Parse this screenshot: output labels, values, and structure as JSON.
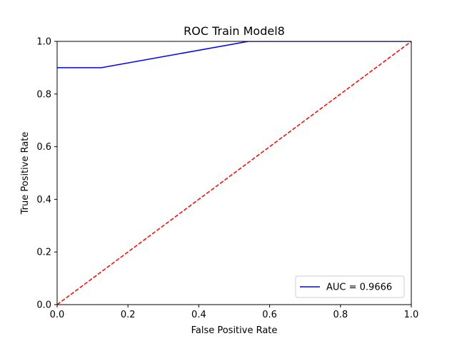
{
  "chart_data": {
    "type": "line",
    "title": "ROC Train Model8",
    "xlabel": "False Positive Rate",
    "ylabel": "True Positive Rate",
    "xlim": [
      0,
      1
    ],
    "ylim": [
      0,
      1
    ],
    "xticks": [
      "0.0",
      "0.2",
      "0.4",
      "0.6",
      "0.8",
      "1.0"
    ],
    "yticks": [
      "0.0",
      "0.2",
      "0.4",
      "0.6",
      "0.8",
      "1.0"
    ],
    "grid": false,
    "legend_position": "lower-right",
    "series": [
      {
        "name": "AUC = 0.9666",
        "color": "#0000ff",
        "style": "solid",
        "x": [
          0.0,
          0.125,
          0.54,
          1.0
        ],
        "y": [
          0.9,
          0.9,
          1.0,
          1.0
        ]
      },
      {
        "color": "#ff0000",
        "style": "dashed",
        "x": [
          0.0,
          1.0
        ],
        "y": [
          0.0,
          1.0
        ]
      }
    ]
  }
}
